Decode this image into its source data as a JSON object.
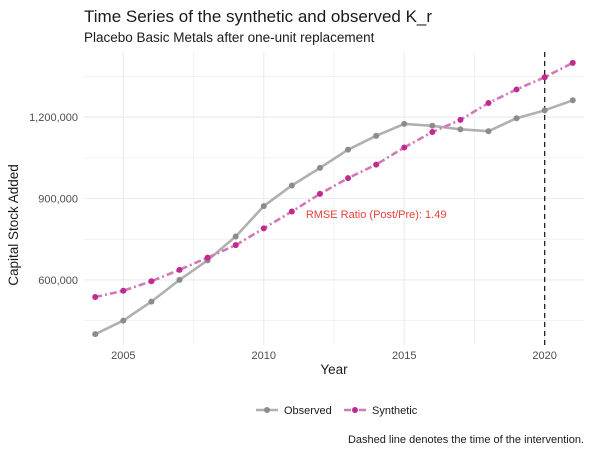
{
  "title": "Time Series of the synthetic and observed K_r",
  "subtitle": "Placebo Basic Metals after one-unit replacement",
  "caption": "Dashed line denotes the time of the intervention.",
  "colors": {
    "observed_line": "#b0b0b0",
    "observed_point": "#8c8c8c",
    "synthetic_line": "#d279b8",
    "synthetic_point": "#c02a8e",
    "annotation": "#e8413a",
    "grid": "#ebebeb"
  },
  "chart_data": {
    "type": "line",
    "xlabel": "Year",
    "ylabel": "Capital Stock Added",
    "xlim": [
      2003.6,
      2021.4
    ],
    "ylim": [
      360000,
      1440000
    ],
    "x_ticks": [
      2005,
      2010,
      2015,
      2020
    ],
    "x_tick_labels": [
      "2005",
      "2010",
      "2015",
      "2020"
    ],
    "y_ticks": [
      600000,
      900000,
      1200000
    ],
    "y_tick_labels": [
      "600,000",
      "900,000",
      "1,200,000"
    ],
    "x": [
      2004,
      2005,
      2006,
      2007,
      2008,
      2009,
      2010,
      2011,
      2012,
      2013,
      2014,
      2015,
      2016,
      2017,
      2018,
      2019,
      2020,
      2021
    ],
    "series": [
      {
        "name": "Observed",
        "values": [
          400000,
          450000,
          520000,
          600000,
          672000,
          760000,
          872000,
          948000,
          1013000,
          1080000,
          1131000,
          1175000,
          1168000,
          1155000,
          1148000,
          1196000,
          1225000,
          1262000
        ]
      },
      {
        "name": "Synthetic",
        "values": [
          537000,
          560000,
          595000,
          637000,
          682000,
          728000,
          790000,
          852000,
          917000,
          975000,
          1025000,
          1088000,
          1145000,
          1190000,
          1252000,
          1302000,
          1347000,
          1400000
        ]
      }
    ],
    "intervention_x": 2020,
    "annotation": {
      "text": "RMSE Ratio (Post/Pre): 1.49",
      "x": 2014,
      "y": 829000
    },
    "legend_position": "bottom",
    "grid": true
  }
}
